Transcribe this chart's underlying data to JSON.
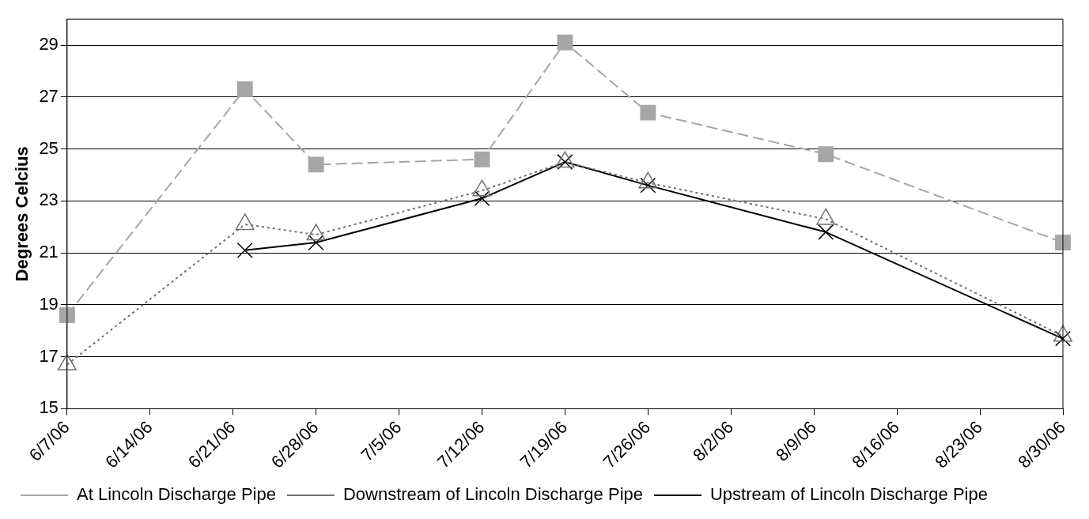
{
  "chart_data": {
    "type": "line",
    "ylabel": "Degrees Celcius",
    "x": [
      "--06-07",
      "--06-22",
      "--06-28",
      "--07-12",
      "--07-19",
      "--07-26",
      "--08-10",
      "--08-30"
    ],
    "series": [
      {
        "name": "At Lincoln Discharge Pipe",
        "color": "#a6a6a6",
        "marker": "square",
        "line_style": "dashed",
        "values": [
          18.6,
          27.3,
          24.4,
          24.6,
          29.1,
          26.4,
          24.8,
          21.4
        ]
      },
      {
        "name": "Downstream of Lincoln Discharge Pipe",
        "color": "#707070",
        "marker": "triangle",
        "line_style": "dotted",
        "values": [
          16.7,
          22.1,
          21.7,
          23.4,
          24.5,
          23.7,
          22.3,
          17.8
        ]
      },
      {
        "name": "Upstream of Lincoln Discharge Pipe",
        "color": "#000000",
        "marker": "cross",
        "line_style": "solid",
        "values": [
          null,
          21.1,
          21.4,
          23.1,
          24.5,
          23.6,
          21.8,
          17.7
        ]
      }
    ],
    "xlim": [
      "--06-07",
      "--08-30"
    ],
    "xticks": [
      {
        "value": "--06-07",
        "label": "6/7/06"
      },
      {
        "value": "--06-14",
        "label": "6/14/06"
      },
      {
        "value": "--06-21",
        "label": "6/21/06"
      },
      {
        "value": "--06-28",
        "label": "6/28/06"
      },
      {
        "value": "--07-05",
        "label": "7/5/06"
      },
      {
        "value": "--07-12",
        "label": "7/12/06"
      },
      {
        "value": "--07-19",
        "label": "7/19/06"
      },
      {
        "value": "--07-26",
        "label": "7/26/06"
      },
      {
        "value": "--08-02",
        "label": "8/2/06"
      },
      {
        "value": "--08-09",
        "label": "8/9/06"
      },
      {
        "value": "--08-16",
        "label": "8/16/06"
      },
      {
        "value": "--08-23",
        "label": "8/23/06"
      },
      {
        "value": "--08-30",
        "label": "8/30/06"
      }
    ],
    "ylim": [
      15,
      30
    ],
    "yticks": [
      15,
      17,
      19,
      21,
      23,
      25,
      27,
      29
    ],
    "grid": "y",
    "legend": "bottom"
  }
}
